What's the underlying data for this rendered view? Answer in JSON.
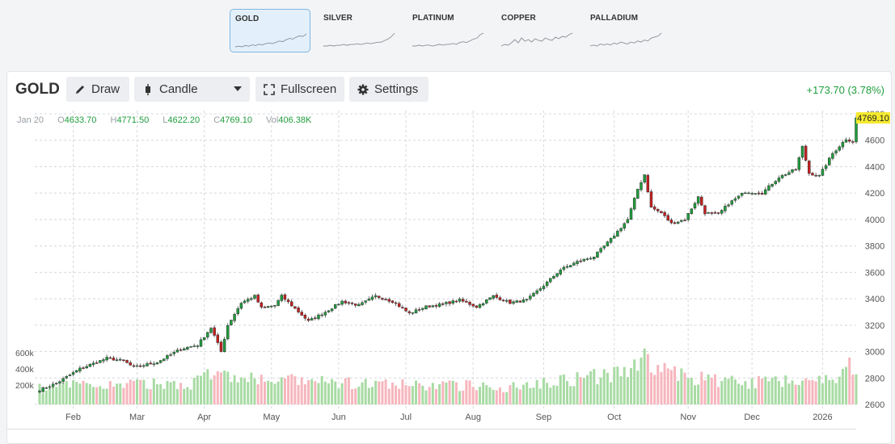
{
  "metals": [
    {
      "label": "GOLD",
      "active": true,
      "spark": [
        10,
        11,
        10,
        12,
        11,
        13,
        12,
        14,
        13,
        15,
        16,
        15,
        17,
        19,
        18,
        21,
        23,
        22,
        25,
        27,
        26,
        30
      ]
    },
    {
      "label": "SILVER",
      "active": false,
      "spark": [
        8,
        8,
        9,
        8,
        9,
        9,
        10,
        9,
        10,
        10,
        11,
        10,
        11,
        12,
        11,
        12,
        13,
        13,
        15,
        17,
        20,
        25
      ]
    },
    {
      "label": "PLATINUM",
      "active": false,
      "spark": [
        9,
        9,
        10,
        9,
        10,
        10,
        9,
        10,
        11,
        10,
        11,
        11,
        12,
        11,
        13,
        14,
        13,
        15,
        17,
        18,
        22,
        24
      ]
    },
    {
      "label": "COPPER",
      "active": false,
      "spark": [
        8,
        10,
        9,
        12,
        16,
        12,
        18,
        14,
        16,
        13,
        17,
        15,
        14,
        18,
        16,
        15,
        19,
        17,
        20,
        19,
        22,
        24
      ]
    },
    {
      "label": "PALLADIUM",
      "active": false,
      "spark": [
        9,
        10,
        9,
        11,
        10,
        11,
        10,
        12,
        11,
        13,
        12,
        11,
        13,
        12,
        14,
        13,
        15,
        14,
        17,
        18,
        19,
        22
      ]
    }
  ],
  "toolbar": {
    "symbol": "GOLD",
    "draw_label": "Draw",
    "chart_type_label": "Candle",
    "fullscreen_label": "Fullscreen",
    "settings_label": "Settings",
    "change": "+173.70 (3.78%)"
  },
  "ohlc": {
    "date": "Jan 20",
    "o_label": "O",
    "open": "4633.70",
    "h_label": "H",
    "high": "4771.50",
    "l_label": "L",
    "low": "4622.20",
    "c_label": "C",
    "close": "4769.10",
    "vol_label": "Vol",
    "volume": "406.38K"
  },
  "colors": {
    "up": "#1f9d3c",
    "down": "#c81e1e",
    "vol_up": "#a8dba4",
    "vol_down": "#f6b6bd",
    "price_tag": "#f5ea2e"
  },
  "chart_data": {
    "type": "candlestick",
    "price_label": "4769.10",
    "y_ticks": [
      2600,
      2800,
      3000,
      3200,
      3400,
      3600,
      3800,
      4000,
      4200,
      4400,
      4600,
      4800
    ],
    "ylim": [
      2600,
      4800
    ],
    "volume_ticks": [
      "200k",
      "400k",
      "600k"
    ],
    "volume_lim": [
      0,
      700
    ],
    "month_labels": [
      {
        "label": "Feb",
        "index": 10
      },
      {
        "label": "Mar",
        "index": 29
      },
      {
        "label": "Apr",
        "index": 49
      },
      {
        "label": "May",
        "index": 69
      },
      {
        "label": "Jun",
        "index": 89
      },
      {
        "label": "Jul",
        "index": 109
      },
      {
        "label": "Aug",
        "index": 129
      },
      {
        "label": "Sep",
        "index": 150
      },
      {
        "label": "Oct",
        "index": 171
      },
      {
        "label": "Nov",
        "index": 193
      },
      {
        "label": "Dec",
        "index": 212
      },
      {
        "label": "2026",
        "index": 233
      }
    ],
    "anchors": [
      [
        0,
        2710
      ],
      [
        5,
        2760
      ],
      [
        12,
        2870
      ],
      [
        20,
        2950
      ],
      [
        25,
        2930
      ],
      [
        28,
        2880
      ],
      [
        35,
        2920
      ],
      [
        42,
        3020
      ],
      [
        47,
        3050
      ],
      [
        51,
        3180
      ],
      [
        54,
        3000
      ],
      [
        56,
        3200
      ],
      [
        60,
        3370
      ],
      [
        64,
        3420
      ],
      [
        66,
        3330
      ],
      [
        70,
        3350
      ],
      [
        72,
        3420
      ],
      [
        75,
        3350
      ],
      [
        80,
        3230
      ],
      [
        85,
        3300
      ],
      [
        90,
        3380
      ],
      [
        95,
        3350
      ],
      [
        100,
        3420
      ],
      [
        105,
        3380
      ],
      [
        110,
        3290
      ],
      [
        115,
        3340
      ],
      [
        120,
        3360
      ],
      [
        125,
        3390
      ],
      [
        130,
        3340
      ],
      [
        135,
        3420
      ],
      [
        140,
        3370
      ],
      [
        145,
        3390
      ],
      [
        150,
        3500
      ],
      [
        155,
        3620
      ],
      [
        160,
        3680
      ],
      [
        165,
        3720
      ],
      [
        170,
        3850
      ],
      [
        175,
        4000
      ],
      [
        178,
        4230
      ],
      [
        180,
        4340
      ],
      [
        182,
        4090
      ],
      [
        185,
        4050
      ],
      [
        188,
        3970
      ],
      [
        192,
        4000
      ],
      [
        196,
        4170
      ],
      [
        198,
        4050
      ],
      [
        202,
        4040
      ],
      [
        205,
        4120
      ],
      [
        210,
        4210
      ],
      [
        215,
        4200
      ],
      [
        220,
        4320
      ],
      [
        225,
        4380
      ],
      [
        227,
        4550
      ],
      [
        229,
        4350
      ],
      [
        232,
        4330
      ],
      [
        236,
        4500
      ],
      [
        240,
        4610
      ],
      [
        242,
        4590
      ],
      [
        243,
        4769
      ]
    ],
    "volume_points": [
      [
        0,
        150
      ],
      [
        10,
        180
      ],
      [
        30,
        190
      ],
      [
        45,
        200
      ],
      [
        50,
        280
      ],
      [
        60,
        250
      ],
      [
        65,
        230
      ],
      [
        75,
        220
      ],
      [
        90,
        200
      ],
      [
        110,
        180
      ],
      [
        130,
        180
      ],
      [
        140,
        160
      ],
      [
        150,
        220
      ],
      [
        165,
        260
      ],
      [
        175,
        300
      ],
      [
        180,
        430
      ],
      [
        185,
        320
      ],
      [
        195,
        250
      ],
      [
        210,
        200
      ],
      [
        225,
        240
      ],
      [
        235,
        230
      ],
      [
        243,
        400
      ]
    ],
    "bar_count": 244
  }
}
